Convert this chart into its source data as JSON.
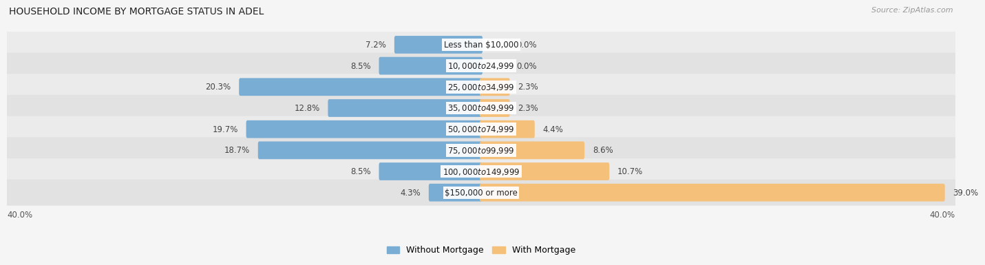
{
  "title": "HOUSEHOLD INCOME BY MORTGAGE STATUS IN ADEL",
  "source": "Source: ZipAtlas.com",
  "categories": [
    "Less than $10,000",
    "$10,000 to $24,999",
    "$25,000 to $34,999",
    "$35,000 to $49,999",
    "$50,000 to $74,999",
    "$75,000 to $99,999",
    "$100,000 to $149,999",
    "$150,000 or more"
  ],
  "without_mortgage": [
    7.2,
    8.5,
    20.3,
    12.8,
    19.7,
    18.7,
    8.5,
    4.3
  ],
  "with_mortgage": [
    0.0,
    0.0,
    2.3,
    2.3,
    4.4,
    8.6,
    10.7,
    39.0
  ],
  "color_without": "#7aadd4",
  "color_with": "#f5c07a",
  "axis_limit": 40.0,
  "title_fontsize": 10,
  "bar_label_fontsize": 8.5,
  "category_fontsize": 8.5,
  "legend_fontsize": 9,
  "source_fontsize": 8,
  "axis_label_fontsize": 8.5,
  "row_colors": [
    "#ebebeb",
    "#e2e2e2"
  ],
  "bg_color": "#f5f5f5"
}
